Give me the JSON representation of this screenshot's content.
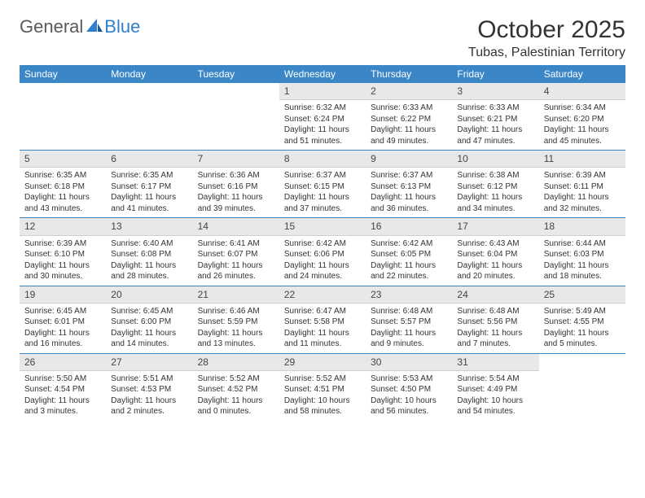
{
  "brand": {
    "general": "General",
    "blue": "Blue",
    "general_color": "#5a5a5a",
    "blue_color": "#2f7fcf"
  },
  "title": "October 2025",
  "location": "Tubas, Palestinian Territory",
  "colors": {
    "header_bg": "#3b86c6",
    "header_text": "#ffffff",
    "daynum_bg": "#e8e8e8",
    "text": "#333333",
    "row_border": "#3b86c6"
  },
  "day_names": [
    "Sunday",
    "Monday",
    "Tuesday",
    "Wednesday",
    "Thursday",
    "Friday",
    "Saturday"
  ],
  "weeks": [
    [
      {
        "empty": true
      },
      {
        "empty": true
      },
      {
        "empty": true
      },
      {
        "day": "1",
        "sunrise": "Sunrise: 6:32 AM",
        "sunset": "Sunset: 6:24 PM",
        "daylight": "Daylight: 11 hours and 51 minutes."
      },
      {
        "day": "2",
        "sunrise": "Sunrise: 6:33 AM",
        "sunset": "Sunset: 6:22 PM",
        "daylight": "Daylight: 11 hours and 49 minutes."
      },
      {
        "day": "3",
        "sunrise": "Sunrise: 6:33 AM",
        "sunset": "Sunset: 6:21 PM",
        "daylight": "Daylight: 11 hours and 47 minutes."
      },
      {
        "day": "4",
        "sunrise": "Sunrise: 6:34 AM",
        "sunset": "Sunset: 6:20 PM",
        "daylight": "Daylight: 11 hours and 45 minutes."
      }
    ],
    [
      {
        "day": "5",
        "sunrise": "Sunrise: 6:35 AM",
        "sunset": "Sunset: 6:18 PM",
        "daylight": "Daylight: 11 hours and 43 minutes."
      },
      {
        "day": "6",
        "sunrise": "Sunrise: 6:35 AM",
        "sunset": "Sunset: 6:17 PM",
        "daylight": "Daylight: 11 hours and 41 minutes."
      },
      {
        "day": "7",
        "sunrise": "Sunrise: 6:36 AM",
        "sunset": "Sunset: 6:16 PM",
        "daylight": "Daylight: 11 hours and 39 minutes."
      },
      {
        "day": "8",
        "sunrise": "Sunrise: 6:37 AM",
        "sunset": "Sunset: 6:15 PM",
        "daylight": "Daylight: 11 hours and 37 minutes."
      },
      {
        "day": "9",
        "sunrise": "Sunrise: 6:37 AM",
        "sunset": "Sunset: 6:13 PM",
        "daylight": "Daylight: 11 hours and 36 minutes."
      },
      {
        "day": "10",
        "sunrise": "Sunrise: 6:38 AM",
        "sunset": "Sunset: 6:12 PM",
        "daylight": "Daylight: 11 hours and 34 minutes."
      },
      {
        "day": "11",
        "sunrise": "Sunrise: 6:39 AM",
        "sunset": "Sunset: 6:11 PM",
        "daylight": "Daylight: 11 hours and 32 minutes."
      }
    ],
    [
      {
        "day": "12",
        "sunrise": "Sunrise: 6:39 AM",
        "sunset": "Sunset: 6:10 PM",
        "daylight": "Daylight: 11 hours and 30 minutes."
      },
      {
        "day": "13",
        "sunrise": "Sunrise: 6:40 AM",
        "sunset": "Sunset: 6:08 PM",
        "daylight": "Daylight: 11 hours and 28 minutes."
      },
      {
        "day": "14",
        "sunrise": "Sunrise: 6:41 AM",
        "sunset": "Sunset: 6:07 PM",
        "daylight": "Daylight: 11 hours and 26 minutes."
      },
      {
        "day": "15",
        "sunrise": "Sunrise: 6:42 AM",
        "sunset": "Sunset: 6:06 PM",
        "daylight": "Daylight: 11 hours and 24 minutes."
      },
      {
        "day": "16",
        "sunrise": "Sunrise: 6:42 AM",
        "sunset": "Sunset: 6:05 PM",
        "daylight": "Daylight: 11 hours and 22 minutes."
      },
      {
        "day": "17",
        "sunrise": "Sunrise: 6:43 AM",
        "sunset": "Sunset: 6:04 PM",
        "daylight": "Daylight: 11 hours and 20 minutes."
      },
      {
        "day": "18",
        "sunrise": "Sunrise: 6:44 AM",
        "sunset": "Sunset: 6:03 PM",
        "daylight": "Daylight: 11 hours and 18 minutes."
      }
    ],
    [
      {
        "day": "19",
        "sunrise": "Sunrise: 6:45 AM",
        "sunset": "Sunset: 6:01 PM",
        "daylight": "Daylight: 11 hours and 16 minutes."
      },
      {
        "day": "20",
        "sunrise": "Sunrise: 6:45 AM",
        "sunset": "Sunset: 6:00 PM",
        "daylight": "Daylight: 11 hours and 14 minutes."
      },
      {
        "day": "21",
        "sunrise": "Sunrise: 6:46 AM",
        "sunset": "Sunset: 5:59 PM",
        "daylight": "Daylight: 11 hours and 13 minutes."
      },
      {
        "day": "22",
        "sunrise": "Sunrise: 6:47 AM",
        "sunset": "Sunset: 5:58 PM",
        "daylight": "Daylight: 11 hours and 11 minutes."
      },
      {
        "day": "23",
        "sunrise": "Sunrise: 6:48 AM",
        "sunset": "Sunset: 5:57 PM",
        "daylight": "Daylight: 11 hours and 9 minutes."
      },
      {
        "day": "24",
        "sunrise": "Sunrise: 6:48 AM",
        "sunset": "Sunset: 5:56 PM",
        "daylight": "Daylight: 11 hours and 7 minutes."
      },
      {
        "day": "25",
        "sunrise": "Sunrise: 5:49 AM",
        "sunset": "Sunset: 4:55 PM",
        "daylight": "Daylight: 11 hours and 5 minutes."
      }
    ],
    [
      {
        "day": "26",
        "sunrise": "Sunrise: 5:50 AM",
        "sunset": "Sunset: 4:54 PM",
        "daylight": "Daylight: 11 hours and 3 minutes."
      },
      {
        "day": "27",
        "sunrise": "Sunrise: 5:51 AM",
        "sunset": "Sunset: 4:53 PM",
        "daylight": "Daylight: 11 hours and 2 minutes."
      },
      {
        "day": "28",
        "sunrise": "Sunrise: 5:52 AM",
        "sunset": "Sunset: 4:52 PM",
        "daylight": "Daylight: 11 hours and 0 minutes."
      },
      {
        "day": "29",
        "sunrise": "Sunrise: 5:52 AM",
        "sunset": "Sunset: 4:51 PM",
        "daylight": "Daylight: 10 hours and 58 minutes."
      },
      {
        "day": "30",
        "sunrise": "Sunrise: 5:53 AM",
        "sunset": "Sunset: 4:50 PM",
        "daylight": "Daylight: 10 hours and 56 minutes."
      },
      {
        "day": "31",
        "sunrise": "Sunrise: 5:54 AM",
        "sunset": "Sunset: 4:49 PM",
        "daylight": "Daylight: 10 hours and 54 minutes."
      },
      {
        "empty": true
      }
    ]
  ]
}
